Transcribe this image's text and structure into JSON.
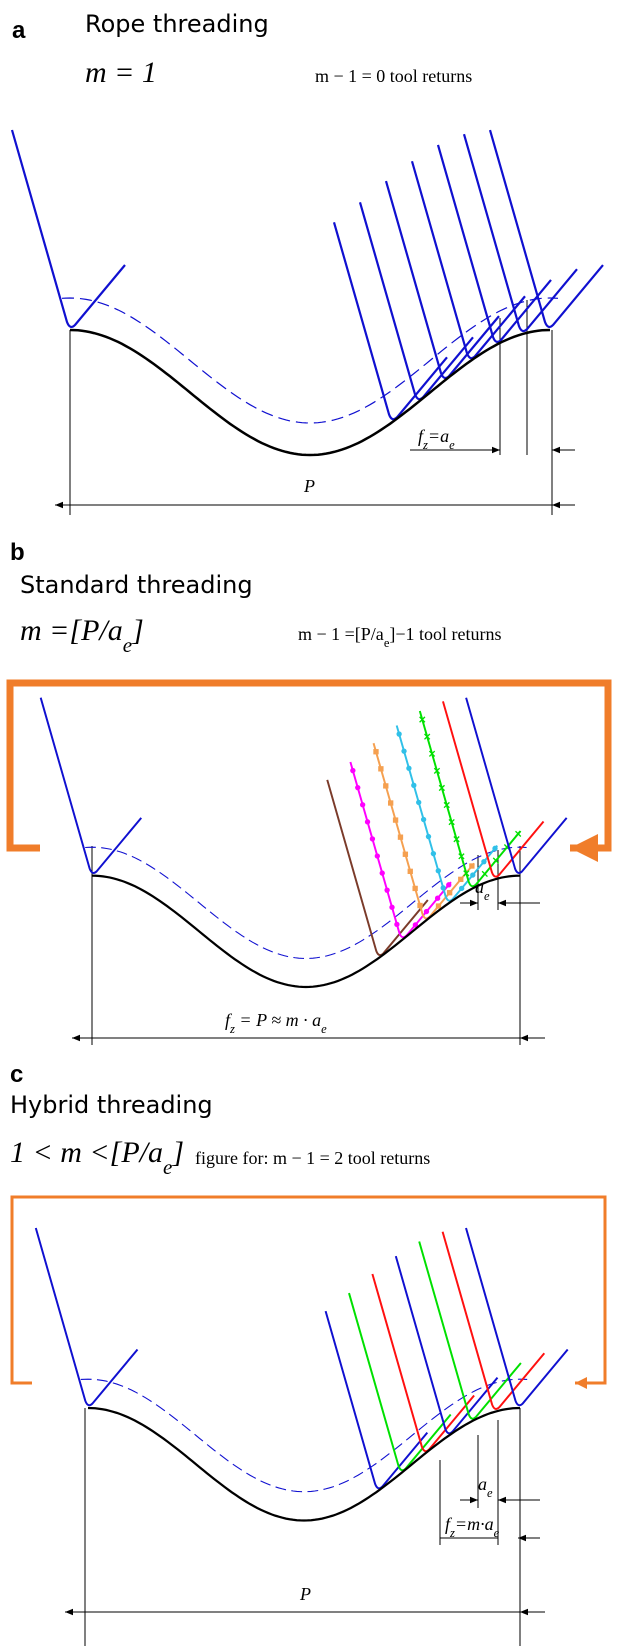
{
  "panels": [
    {
      "label": "a",
      "title": "Rope threading",
      "formula": [
        {
          "text": "m = 1"
        }
      ],
      "note": [
        {
          "text": "m − 1 = 0 tool returns"
        }
      ],
      "dimensions": [
        [
          {
            "text": "f"
          },
          {
            "sub": "z"
          },
          {
            "text": "=a"
          },
          {
            "sub": "e"
          }
        ],
        [
          {
            "text": "P"
          }
        ]
      ]
    },
    {
      "label": "b",
      "title": "Standard threading",
      "formula": [
        {
          "text": "m =[P/a"
        },
        {
          "sub": "e"
        },
        {
          "text": "]"
        }
      ],
      "note": [
        {
          "text": "m − 1 =[P/a"
        },
        {
          "sub": "e"
        },
        {
          "text": "]−1   tool returns"
        }
      ],
      "dimensions": [
        [
          {
            "text": "a"
          },
          {
            "sub": "e"
          }
        ],
        [
          {
            "text": "f"
          },
          {
            "sub": "z"
          },
          {
            "text": " = P ≈ m · a"
          },
          {
            "sub": "e"
          }
        ]
      ]
    },
    {
      "label": "c",
      "title": "Hybrid threading",
      "formula": [
        {
          "text": "1 < m <[P/a"
        },
        {
          "sub": "e"
        },
        {
          "text": "]"
        }
      ],
      "note": [
        {
          "text": "figure for: m − 1 = 2   tool returns"
        }
      ],
      "dimensions": [
        [
          {
            "text": "a"
          },
          {
            "sub": "e"
          }
        ],
        [
          {
            "text": "f"
          },
          {
            "sub": "z"
          },
          {
            "text": "=m·a"
          },
          {
            "sub": "e"
          }
        ],
        [
          {
            "text": "P"
          }
        ]
      ]
    }
  ]
}
